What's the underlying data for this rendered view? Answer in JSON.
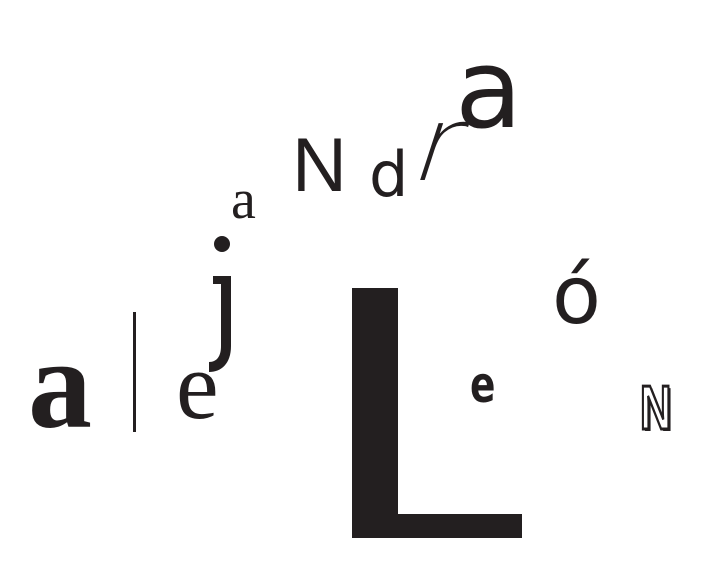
{
  "artwork": {
    "glyphs": {
      "a_large": "a",
      "e_serif": "e",
      "a_small": "a",
      "N_sans": "N",
      "d": "d",
      "r_slanted": "r",
      "a_top": "a",
      "e_condensed": "e",
      "o_acute": "ó",
      "N_outlined": "N"
    },
    "shape_glyphs": [
      "j",
      "L"
    ],
    "ink_color": "#231f20",
    "background_color": "#ffffff"
  }
}
